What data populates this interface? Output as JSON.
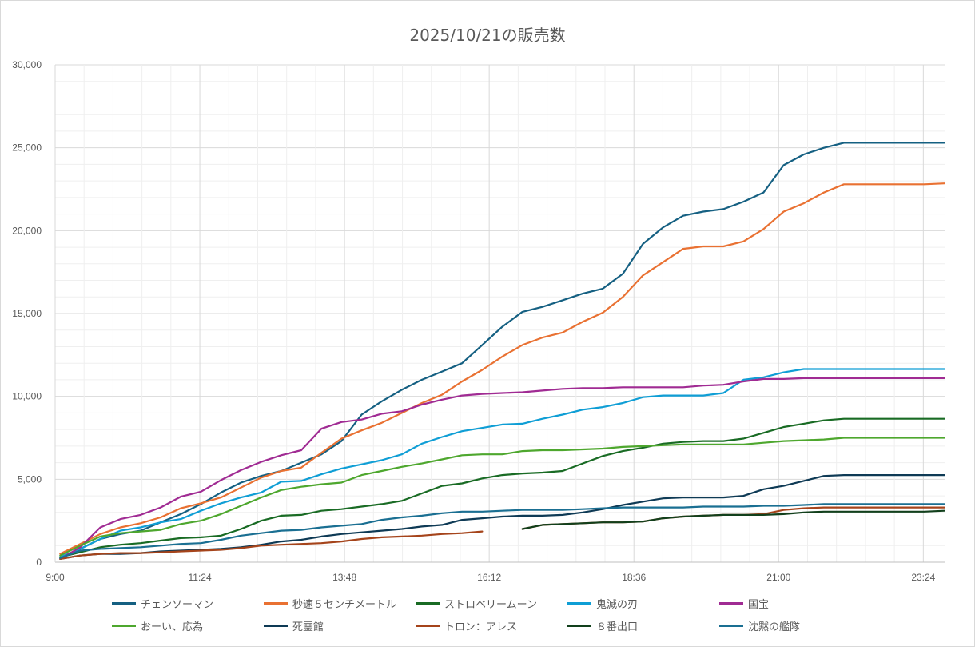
{
  "chart_data": {
    "type": "line",
    "title": "2025/10/21の販売数",
    "xlabel": "",
    "ylabel": "",
    "ylim": [
      0,
      30000
    ],
    "y_ticks": [
      "0",
      "5,000",
      "10,000",
      "15,000",
      "20,000",
      "25,000",
      "30,000"
    ],
    "y_tick_values": [
      0,
      5000,
      10000,
      15000,
      20000,
      25000,
      30000
    ],
    "x_ticks": [
      "9:00",
      "11:24",
      "13:48",
      "16:12",
      "18:36",
      "21:00",
      "23:24"
    ],
    "x_tick_minutes": [
      540,
      684,
      828,
      972,
      1116,
      1260,
      1404
    ],
    "xlim_minutes": [
      540,
      1426
    ],
    "x_minutes_start": 545,
    "x_interval_minutes": 20,
    "grid": true,
    "legend_position": "bottom",
    "series": [
      {
        "name": "チェンソーマン",
        "color": "#156082",
        "values": [
          300,
          800,
          1400,
          1700,
          1900,
          2400,
          2900,
          3500,
          4200,
          4800,
          5200,
          5500,
          6000,
          6500,
          7300,
          8900,
          9700,
          10400,
          11000,
          11500,
          12000,
          13100,
          14200,
          15100,
          15400,
          15800,
          16200,
          16500,
          17400,
          19200,
          20200,
          20900,
          21150,
          21300,
          21750,
          22300,
          23950,
          24600,
          25000,
          25300,
          25300,
          25300,
          25300,
          25300,
          25300
        ]
      },
      {
        "name": "秒速５センチメートル",
        "color": "#e97132",
        "values": [
          500,
          1100,
          1700,
          2100,
          2350,
          2700,
          3250,
          3550,
          3900,
          4500,
          5100,
          5500,
          5700,
          6600,
          7450,
          7950,
          8400,
          9000,
          9600,
          10100,
          10900,
          11600,
          12400,
          13100,
          13550,
          13850,
          14500,
          15050,
          16000,
          17300,
          18100,
          18900,
          19050,
          19050,
          19350,
          20100,
          21150,
          21650,
          22300,
          22800,
          22800,
          22800,
          22800,
          22800,
          22850
        ]
      },
      {
        "name": "ストロベリームーン",
        "color": "#196b24",
        "values": [
          300,
          600,
          900,
          1050,
          1150,
          1300,
          1450,
          1500,
          1600,
          2000,
          2500,
          2800,
          2850,
          3100,
          3200,
          3350,
          3500,
          3700,
          4150,
          4600,
          4750,
          5050,
          5250,
          5350,
          5400,
          5500,
          5950,
          6400,
          6700,
          6900,
          7150,
          7250,
          7300,
          7300,
          7450,
          7800,
          8150,
          8350,
          8550,
          8650,
          8650,
          8650,
          8650,
          8650,
          8650
        ]
      },
      {
        "name": "鬼滅の刃",
        "color": "#0f9ed5",
        "values": [
          300,
          800,
          1400,
          1900,
          2100,
          2400,
          2600,
          3100,
          3550,
          3900,
          4200,
          4850,
          4900,
          5300,
          5650,
          5900,
          6150,
          6500,
          7150,
          7550,
          7900,
          8100,
          8300,
          8350,
          8650,
          8900,
          9200,
          9350,
          9600,
          9950,
          10050,
          10050,
          10050,
          10200,
          11000,
          11150,
          11450,
          11650,
          11650,
          11650,
          11650,
          11650,
          11650,
          11650,
          11650
        ]
      },
      {
        "name": "国宝",
        "color": "#a02b93",
        "values": [
          200,
          900,
          2100,
          2600,
          2850,
          3300,
          3950,
          4250,
          4950,
          5550,
          6050,
          6450,
          6750,
          8050,
          8450,
          8600,
          8950,
          9100,
          9500,
          9800,
          10050,
          10150,
          10200,
          10250,
          10350,
          10450,
          10500,
          10500,
          10550,
          10550,
          10550,
          10550,
          10650,
          10700,
          10900,
          11050,
          11050,
          11100,
          11100,
          11100,
          11100,
          11100,
          11100,
          11100,
          11100
        ]
      },
      {
        "name": "おーい、応為",
        "color": "#4ea72e",
        "values": [
          400,
          1000,
          1550,
          1750,
          1850,
          1950,
          2300,
          2500,
          2900,
          3400,
          3900,
          4350,
          4550,
          4700,
          4800,
          5250,
          5500,
          5750,
          5950,
          6200,
          6450,
          6500,
          6500,
          6700,
          6750,
          6750,
          6800,
          6850,
          6950,
          7000,
          7050,
          7100,
          7100,
          7100,
          7100,
          7200,
          7300,
          7350,
          7400,
          7500,
          7500,
          7500,
          7500,
          7500,
          7500
        ]
      },
      {
        "name": "死霊館",
        "color": "#0e3a55",
        "values": [
          200,
          400,
          500,
          500,
          550,
          650,
          700,
          750,
          800,
          900,
          1050,
          1250,
          1350,
          1550,
          1700,
          1800,
          1900,
          2000,
          2150,
          2250,
          2550,
          2650,
          2750,
          2800,
          2800,
          2850,
          3000,
          3200,
          3450,
          3650,
          3850,
          3900,
          3900,
          3900,
          4000,
          4400,
          4600,
          4900,
          5200,
          5250,
          5250,
          5250,
          5250,
          5250,
          5250
        ]
      },
      {
        "name": "トロン：アレス",
        "color": "#a5441b",
        "values": [
          200,
          400,
          500,
          550,
          550,
          600,
          650,
          700,
          750,
          850,
          1000,
          1050,
          1100,
          1150,
          1250,
          1400,
          1500,
          1550,
          1600,
          1700,
          1750,
          1850,
          null,
          2000,
          2250,
          2300,
          2350,
          2400,
          2400,
          2450,
          2650,
          2750,
          2800,
          2850,
          2850,
          2900,
          3150,
          3250,
          3300,
          3300,
          3300,
          3300,
          3300,
          3300,
          3300
        ]
      },
      {
        "name": "８番出口",
        "color": "#12401c",
        "values": [
          null,
          null,
          null,
          null,
          null,
          null,
          null,
          null,
          null,
          null,
          null,
          null,
          null,
          null,
          null,
          null,
          null,
          null,
          null,
          null,
          null,
          null,
          null,
          2000,
          2250,
          2300,
          2350,
          2400,
          2400,
          2450,
          2650,
          2750,
          2800,
          2850,
          2850,
          2850,
          2900,
          3000,
          3050,
          3050,
          3050,
          3050,
          3050,
          3050,
          3100
        ]
      },
      {
        "name": "沈黙の艦隊",
        "color": "#1a6f92",
        "values": [
          250,
          700,
          800,
          850,
          900,
          1000,
          1100,
          1150,
          1350,
          1600,
          1750,
          1900,
          1950,
          2100,
          2200,
          2300,
          2550,
          2700,
          2800,
          2950,
          3050,
          3050,
          3100,
          3150,
          3150,
          3150,
          3200,
          3250,
          3300,
          3300,
          3300,
          3300,
          3350,
          3350,
          3350,
          3400,
          3400,
          3450,
          3500,
          3500,
          3500,
          3500,
          3500,
          3500,
          3500
        ]
      }
    ]
  }
}
